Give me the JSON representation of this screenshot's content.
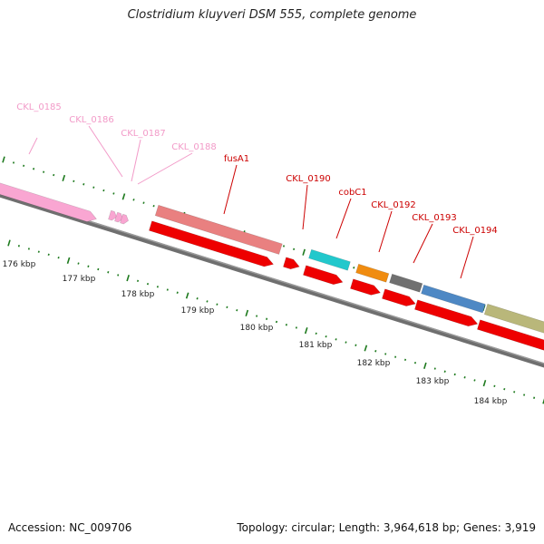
{
  "title": "Clostridium kluyveri DSM 555, complete genome",
  "footer": {
    "accession": "Accession: NC_009706",
    "summary": "Topology: circular; Length: 3,964,618 bp; Genes: 3,919"
  },
  "colors": {
    "backbone": "#7a7a7a",
    "tick": "#1e7a1e",
    "gene_label": "#cc0000",
    "gene_label_faint": "#f29ac8",
    "cds": "#ee0000"
  },
  "scale_labels": [
    "176 kbp",
    "177 kbp",
    "178 kbp",
    "179 kbp",
    "180 kbp",
    "181 kbp",
    "182 kbp",
    "183 kbp",
    "184 kbp"
  ],
  "genes": [
    {
      "name": "CKL_0185",
      "color": "#f9a6d2",
      "faint": true
    },
    {
      "name": "CKL_0186",
      "color": "#f9a6d2",
      "faint": true
    },
    {
      "name": "CKL_0187",
      "color": "#f9a6d2",
      "faint": true
    },
    {
      "name": "CKL_0188",
      "color": "#f9a6d2",
      "faint": true
    },
    {
      "name": "fusA1",
      "color": "#e98080",
      "faint": false
    },
    {
      "name": "CKL_0190",
      "color": "#ee0000",
      "faint": false
    },
    {
      "name": "cobC1",
      "color": "#22c8cc",
      "faint": false
    },
    {
      "name": "CKL_0192",
      "color": "#f08c10",
      "faint": false
    },
    {
      "name": "CKL_0193",
      "color": "#707070",
      "faint": false
    },
    {
      "name": "CKL_0194",
      "color": "#4e88c4",
      "faint": false
    },
    {
      "name": "",
      "color": "#b9b77a",
      "faint": false
    }
  ]
}
